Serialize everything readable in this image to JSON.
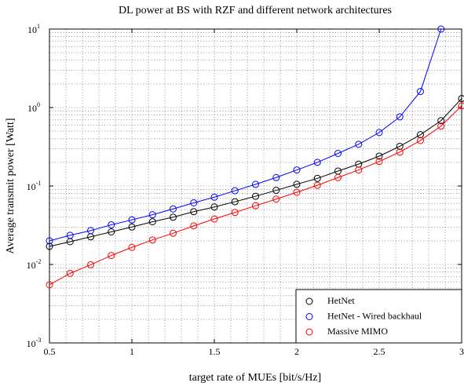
{
  "chart_data": {
    "type": "line",
    "title": "DL power at BS with RZF and different network architectures",
    "xlabel": "target rate of MUEs [bit/s/Hz]",
    "ylabel": "Average transmit power [Watt]",
    "x": [
      0.5,
      0.625,
      0.75,
      0.875,
      1.0,
      1.125,
      1.25,
      1.375,
      1.5,
      1.625,
      1.75,
      1.875,
      2.0,
      2.125,
      2.25,
      2.375,
      2.5,
      2.625,
      2.75,
      2.875,
      3.0
    ],
    "series": [
      {
        "name": "HetNet",
        "color": "#000000",
        "values": [
          0.017,
          0.0195,
          0.0225,
          0.026,
          0.03,
          0.035,
          0.04,
          0.047,
          0.054,
          0.063,
          0.074,
          0.088,
          0.105,
          0.125,
          0.155,
          0.19,
          0.24,
          0.32,
          0.45,
          0.68,
          1.3
        ]
      },
      {
        "name": "HetNet - Wired backhaul",
        "color": "#0000ff",
        "values": [
          0.02,
          0.0235,
          0.027,
          0.032,
          0.037,
          0.043,
          0.051,
          0.061,
          0.072,
          0.087,
          0.105,
          0.128,
          0.16,
          0.2,
          0.26,
          0.34,
          0.48,
          0.76,
          1.6,
          10,
          null
        ]
      },
      {
        "name": "Massive MIMO",
        "color": "#ff0000",
        "values": [
          0.0055,
          0.0077,
          0.0099,
          0.013,
          0.0165,
          0.0205,
          0.025,
          0.031,
          0.038,
          0.046,
          0.056,
          0.068,
          0.083,
          0.102,
          0.128,
          0.16,
          0.205,
          0.27,
          0.38,
          0.58,
          1.05
        ]
      }
    ],
    "xlim": [
      0.5,
      3
    ],
    "xticks": [
      0.5,
      1,
      1.5,
      2,
      2.5,
      3
    ],
    "ylim": [
      0.001,
      10
    ],
    "ylog": true,
    "yticks": [
      {
        "value": 0.001,
        "label": "10",
        "power": "-3"
      },
      {
        "value": 0.01,
        "label": "10",
        "power": "-2"
      },
      {
        "value": 0.1,
        "label": "10",
        "power": "-1"
      },
      {
        "value": 1,
        "label": "10",
        "power": "0"
      },
      {
        "value": 10,
        "label": "10",
        "power": "1"
      }
    ],
    "grid": true,
    "legend": "lower right"
  }
}
